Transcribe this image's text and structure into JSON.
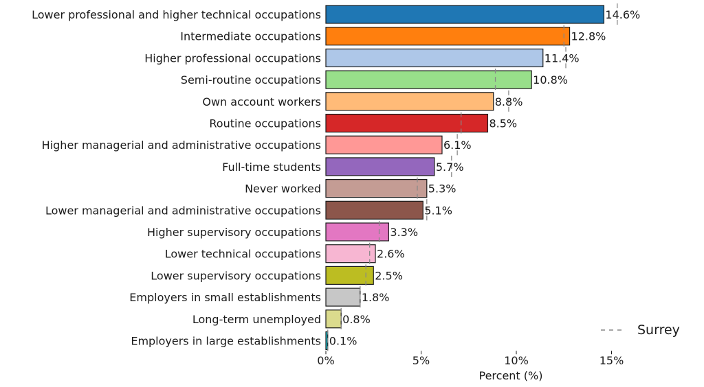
{
  "chart_data": {
    "type": "bar",
    "orientation": "horizontal",
    "categories": [
      "Lower professional and higher technical occupations",
      "Intermediate occupations",
      "Higher professional occupations",
      "Semi-routine occupations",
      "Own account workers",
      "Routine occupations",
      "Higher managerial and administrative occupations",
      "Full-time students",
      "Never worked",
      "Lower managerial and administrative occupations",
      "Higher supervisory occupations",
      "Lower technical occupations",
      "Lower supervisory occupations",
      "Employers in small establishments",
      "Long-term unemployed",
      "Employers in large establishments"
    ],
    "values": [
      14.6,
      12.8,
      11.4,
      10.8,
      8.8,
      8.5,
      6.1,
      5.7,
      5.3,
      5.1,
      3.3,
      2.6,
      2.5,
      1.8,
      0.8,
      0.1
    ],
    "value_labels": [
      "14.6%",
      "12.8%",
      "11.4%",
      "10.8%",
      "8.8%",
      "8.5%",
      "6.1%",
      "5.7%",
      "5.3%",
      "5.1%",
      "3.3%",
      "2.6%",
      "2.5%",
      "1.8%",
      "0.8%",
      "0.1%"
    ],
    "reference_series": {
      "name": "Surrey",
      "values": [
        15.3,
        12.5,
        12.6,
        8.9,
        9.6,
        7.1,
        6.9,
        6.6,
        4.8,
        5.3,
        2.8,
        2.3,
        2.1,
        1.8,
        0.8,
        0.1
      ]
    },
    "colors": [
      "#1f77b4",
      "#ff7f0e",
      "#aec7e8",
      "#98df8a",
      "#ffbb78",
      "#d62728",
      "#ff9896",
      "#9467bd",
      "#c49c94",
      "#8c564b",
      "#e377c2",
      "#f7b6d2",
      "#bcbd22",
      "#c7c7c7",
      "#dbdb8d",
      "#17becf"
    ],
    "xlabel": "Percent (%)",
    "ylabel": "",
    "title": "",
    "xlim": [
      0,
      16
    ],
    "xticks": [
      0,
      5,
      10,
      15
    ],
    "xtick_labels": [
      "0%",
      "5%",
      "10%",
      "15%"
    ],
    "grid": false,
    "legend": {
      "entries": [
        "Surrey"
      ],
      "placement": "lower-right"
    }
  }
}
